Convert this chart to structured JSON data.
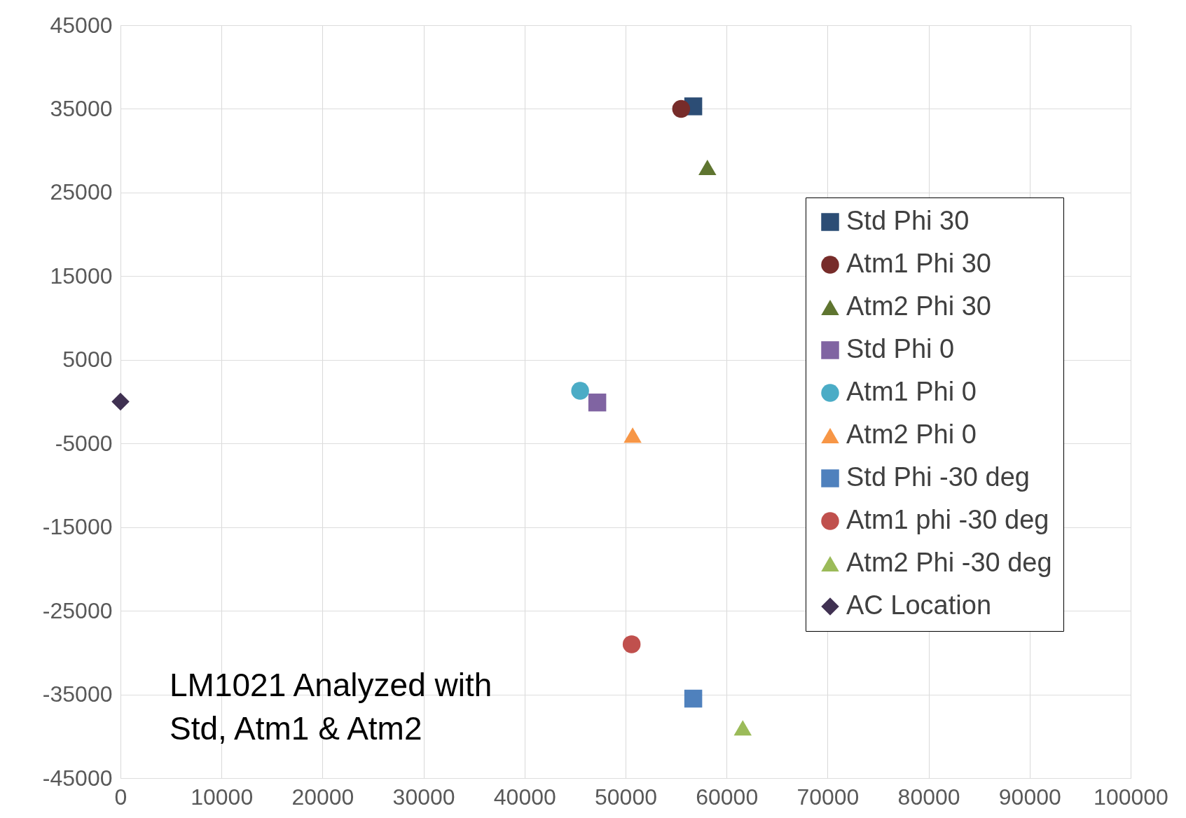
{
  "chart_data": {
    "type": "scatter",
    "xlim": [
      0,
      100000
    ],
    "ylim": [
      -45000,
      45000
    ],
    "xticks": [
      0,
      10000,
      20000,
      30000,
      40000,
      50000,
      60000,
      70000,
      80000,
      90000,
      100000
    ],
    "yticks": [
      -45000,
      -35000,
      -25000,
      -15000,
      -5000,
      5000,
      15000,
      25000,
      35000,
      45000
    ],
    "grid": true,
    "legend": "right",
    "annotations": [
      "LM1021 Analyzed with\nStd, Atm1 & Atm2"
    ],
    "series": [
      {
        "name": "Std  Phi 30",
        "color": "#2c4d75",
        "marker": "square",
        "x": [
          56700
        ],
        "values": [
          35300
        ]
      },
      {
        "name": "Atm1 Phi 30",
        "color": "#772c2a",
        "marker": "circle",
        "x": [
          55500
        ],
        "values": [
          35000
        ]
      },
      {
        "name": "Atm2 Phi 30",
        "color": "#5f7530",
        "marker": "triangle",
        "x": [
          58100
        ],
        "values": [
          28000
        ]
      },
      {
        "name": "Std Phi 0",
        "color": "#8064a2",
        "marker": "square",
        "x": [
          47200
        ],
        "values": [
          -100
        ]
      },
      {
        "name": "Atm1 Phi 0",
        "color": "#4bacc6",
        "marker": "circle",
        "x": [
          45500
        ],
        "values": [
          1300
        ]
      },
      {
        "name": "Atm2 Phi 0",
        "color": "#f79646",
        "marker": "triangle",
        "x": [
          50700
        ],
        "values": [
          -4000
        ]
      },
      {
        "name": "Std  Phi -30 deg",
        "color": "#4f81bd",
        "marker": "square",
        "x": [
          56700
        ],
        "values": [
          -35500
        ]
      },
      {
        "name": "Atm1 phi -30 deg",
        "color": "#c0504d",
        "marker": "circle",
        "x": [
          50600
        ],
        "values": [
          -29000
        ]
      },
      {
        "name": "Atm2 Phi -30 deg",
        "color": "#9bbb59",
        "marker": "triangle",
        "x": [
          61600
        ],
        "values": [
          -39000
        ]
      },
      {
        "name": "AC Location",
        "color": "#403152",
        "marker": "diamond",
        "x": [
          0
        ],
        "values": [
          0
        ]
      }
    ]
  }
}
